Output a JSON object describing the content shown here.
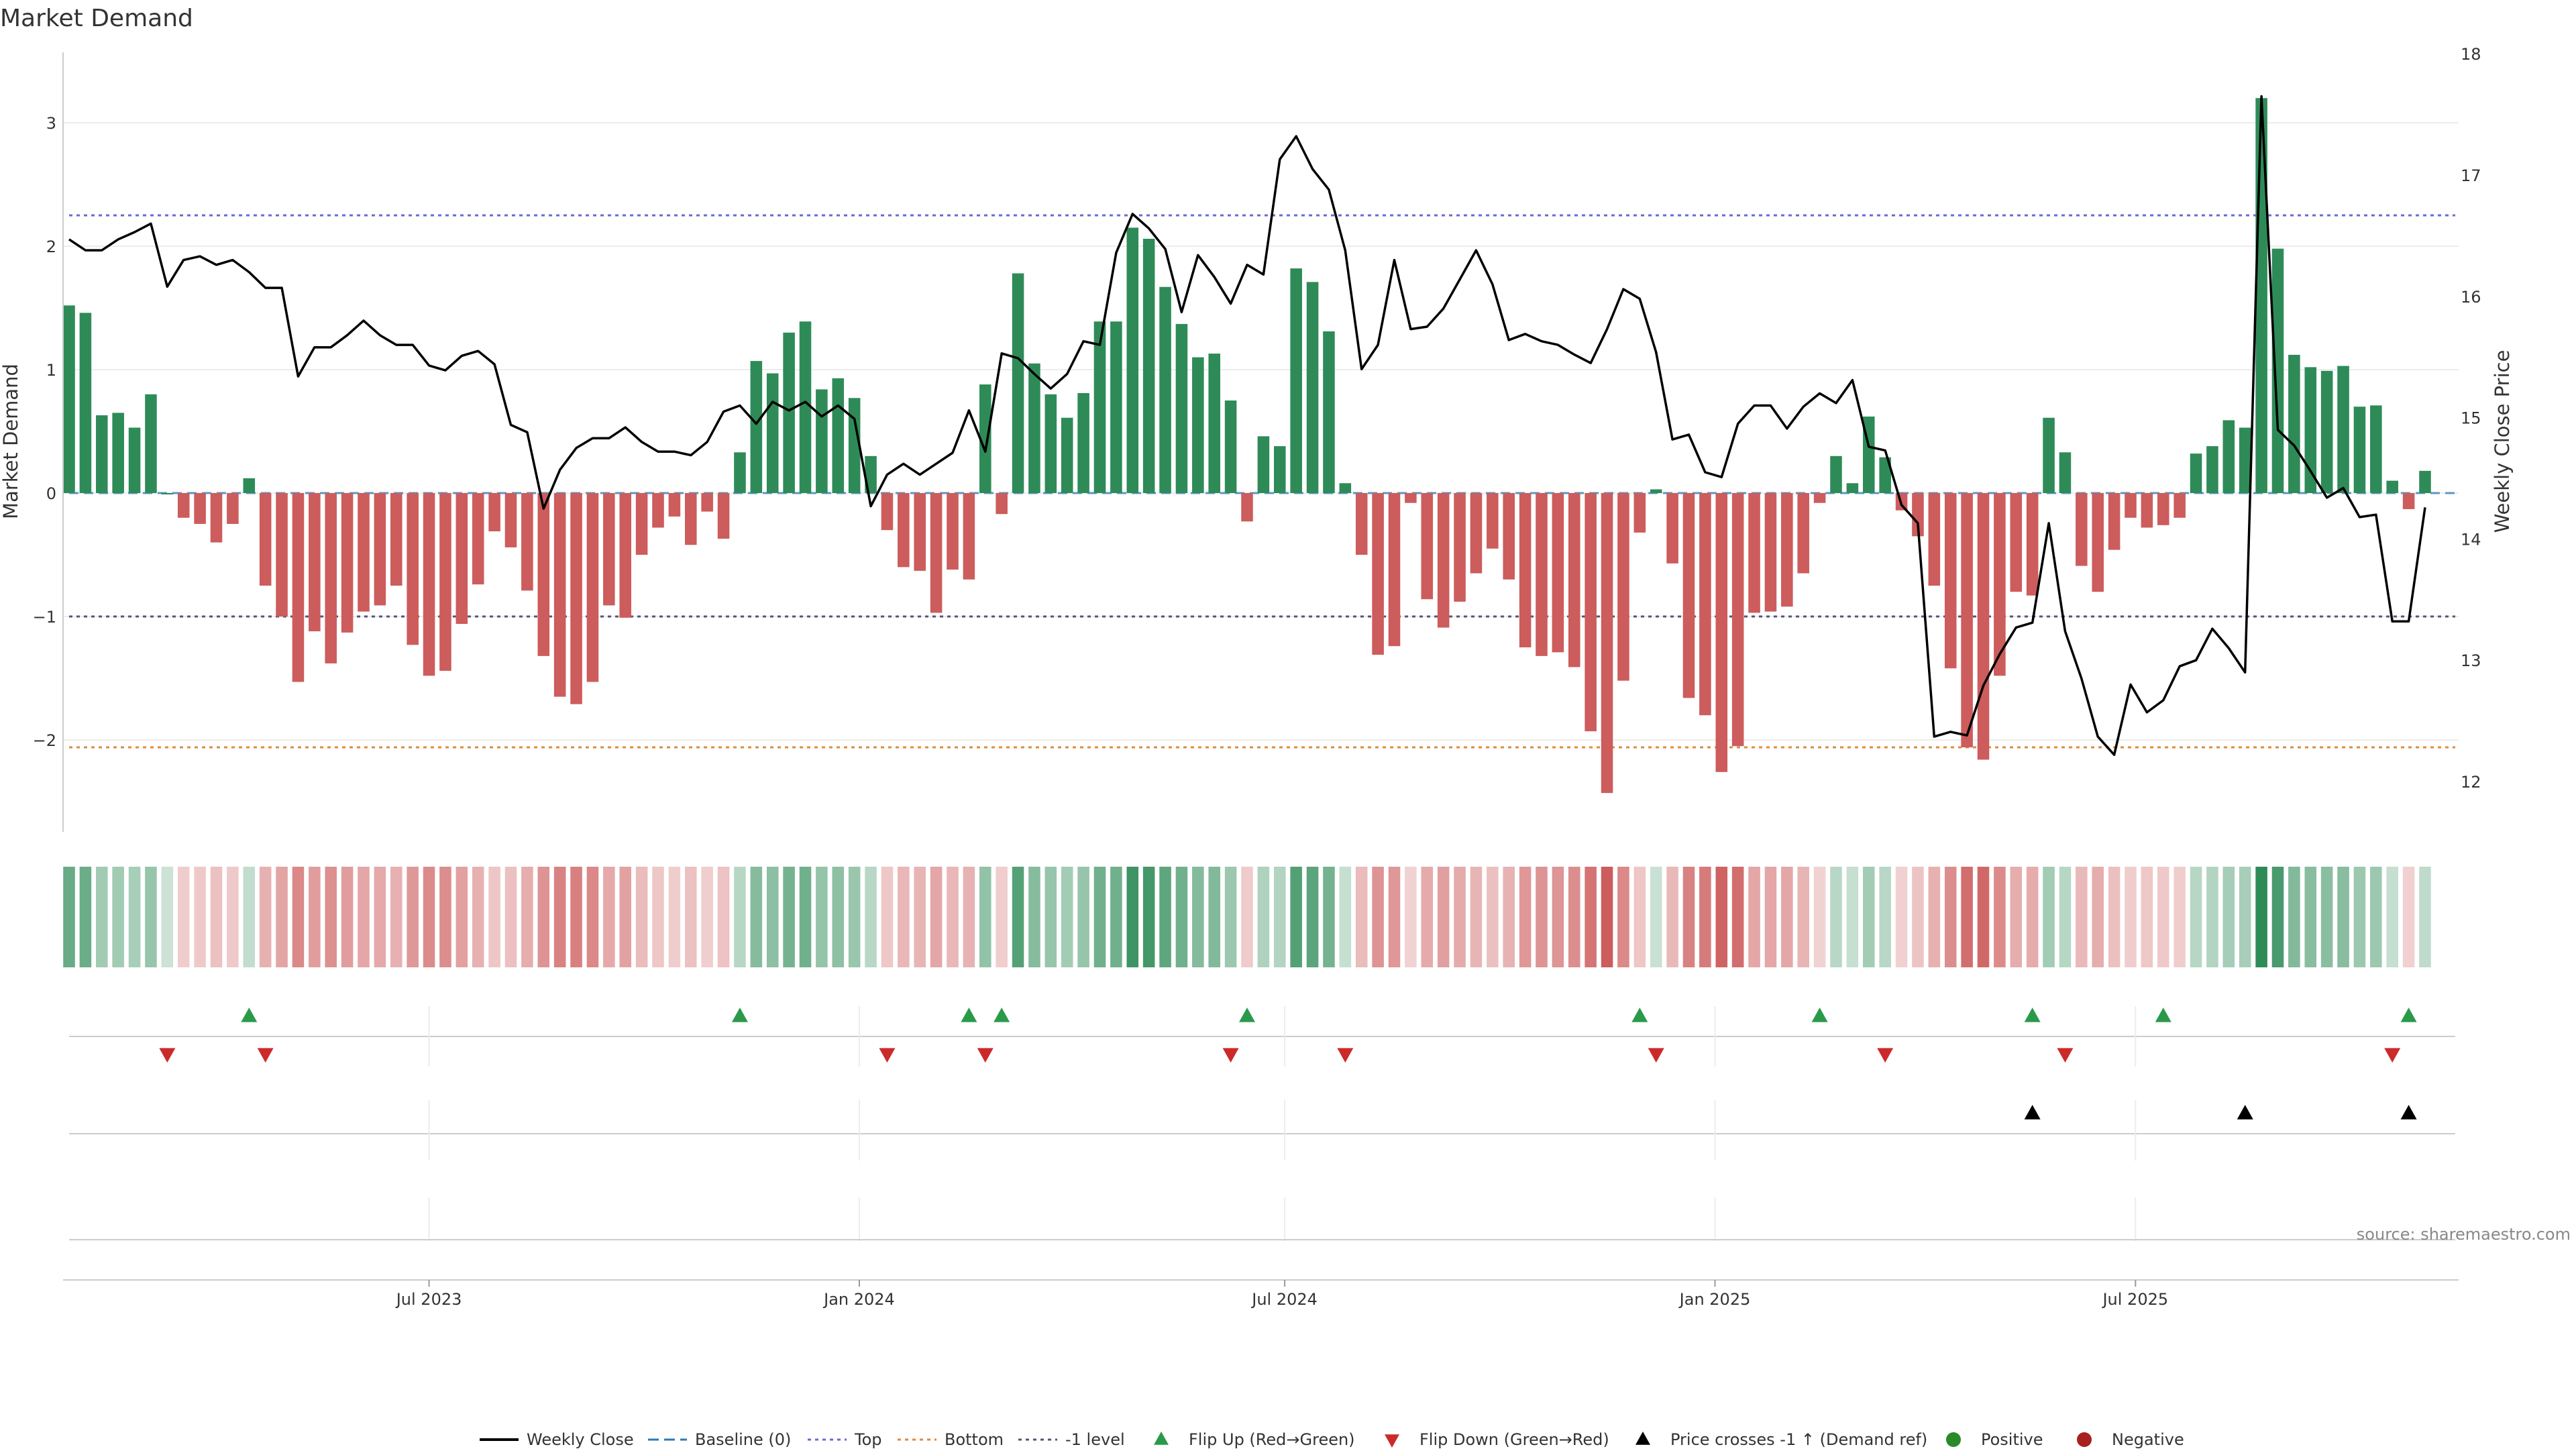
{
  "colors": {
    "pos": "#2e8b57",
    "neg": "#cd5c5c",
    "top": "#6a6ad0",
    "bottom": "#e08a3c",
    "minus1": "#555577",
    "baseline": "#2a7ab8",
    "flipUp": "#2a9a4a",
    "flipDown": "#cc2a2a",
    "price": "#000000",
    "grid": "#ececec",
    "axis": "#cccccc"
  },
  "chart_data": {
    "type": "bar+line",
    "title": "Market Demand",
    "ylabel": "Market Demand",
    "y2label": "Weekly Close Price",
    "ylim": [
      -2.75,
      3.55
    ],
    "y2lim": [
      11.6,
      18.0
    ],
    "yticks": [
      3,
      2,
      1,
      0,
      -1,
      -2
    ],
    "yticklabels": [
      "3",
      "2",
      "1",
      "0",
      "−1",
      "−2"
    ],
    "y2ticks": [
      18,
      17,
      16,
      15,
      14,
      13,
      12
    ],
    "y2ticklabels": [
      "18",
      "17",
      "16",
      "15",
      "14",
      "13",
      "12"
    ],
    "levels": {
      "top": 2.25,
      "bottom": -2.06,
      "minus1": -1.0
    },
    "xlabels": [
      "Jul 2023",
      "Jan 2024",
      "Jul 2024",
      "Jan 2025",
      "Jul 2025"
    ],
    "xlabel_index": [
      22,
      48.3,
      74.3,
      100.6,
      126.3
    ],
    "demand": [
      1.52,
      1.46,
      0.63,
      0.65,
      0.53,
      0.8,
      0.0,
      -0.2,
      -0.25,
      -0.4,
      -0.25,
      0.12,
      -0.75,
      -1.0,
      -1.53,
      -1.12,
      -1.38,
      -1.13,
      -0.96,
      -0.91,
      -0.75,
      -1.23,
      -1.48,
      -1.44,
      -1.06,
      -0.74,
      -0.31,
      -0.44,
      -0.79,
      -1.32,
      -1.65,
      -1.71,
      -1.53,
      -0.91,
      -1.01,
      -0.5,
      -0.28,
      -0.19,
      -0.42,
      -0.15,
      -0.37,
      0.33,
      1.07,
      0.97,
      1.3,
      1.39,
      0.84,
      0.93,
      0.77,
      0.3,
      -0.3,
      -0.6,
      -0.63,
      -0.97,
      -0.62,
      -0.7,
      0.88,
      -0.17,
      1.78,
      1.05,
      0.8,
      0.61,
      0.81,
      1.39,
      1.39,
      2.15,
      2.06,
      1.67,
      1.37,
      1.1,
      1.13,
      0.75,
      -0.23,
      0.46,
      0.38,
      1.82,
      1.71,
      1.31,
      0.08,
      -0.5,
      -1.31,
      -1.24,
      -0.08,
      -0.86,
      -1.09,
      -0.88,
      -0.65,
      -0.45,
      -0.7,
      -1.25,
      -1.32,
      -1.29,
      -1.41,
      -1.93,
      -2.43,
      -1.52,
      -0.32,
      0.03,
      -0.57,
      -1.66,
      -1.8,
      -2.26,
      -2.05,
      -0.97,
      -0.96,
      -0.92,
      -0.65,
      -0.08,
      0.3,
      0.08,
      0.62,
      0.29,
      -0.14,
      -0.35,
      -0.75,
      -1.42,
      -2.06,
      -2.16,
      -1.48,
      -0.8,
      -0.83,
      0.61,
      0.33,
      -0.59,
      -0.8,
      -0.46,
      -0.2,
      -0.28,
      -0.26,
      -0.2,
      0.32,
      0.38,
      0.59,
      0.53,
      3.2,
      1.98,
      1.12,
      1.02,
      0.99,
      1.03,
      0.7,
      0.71,
      0.1,
      -0.13,
      0.18
    ],
    "price": [
      16.47,
      16.38,
      16.38,
      16.47,
      16.53,
      16.6,
      16.08,
      16.3,
      16.33,
      16.26,
      16.3,
      16.2,
      16.07,
      16.07,
      15.34,
      15.58,
      15.58,
      15.68,
      15.8,
      15.68,
      15.6,
      15.6,
      15.43,
      15.39,
      15.51,
      15.55,
      15.44,
      14.94,
      14.88,
      14.25,
      14.57,
      14.75,
      14.83,
      14.83,
      14.92,
      14.8,
      14.72,
      14.72,
      14.69,
      14.8,
      15.05,
      15.1,
      14.95,
      15.13,
      15.06,
      15.13,
      15.01,
      15.1,
      14.99,
      14.27,
      14.53,
      14.62,
      14.53,
      14.62,
      14.71,
      15.06,
      14.72,
      15.53,
      15.49,
      15.36,
      15.24,
      15.36,
      15.63,
      15.6,
      16.36,
      16.68,
      16.56,
      16.39,
      15.87,
      16.34,
      16.16,
      15.94,
      16.26,
      16.18,
      17.13,
      17.32,
      17.05,
      16.88,
      16.38,
      15.4,
      15.6,
      16.3,
      15.73,
      15.75,
      15.9,
      16.14,
      16.38,
      16.1,
      15.64,
      15.69,
      15.63,
      15.6,
      15.52,
      15.45,
      15.73,
      16.06,
      15.98,
      15.54,
      14.82,
      14.86,
      14.55,
      14.51,
      14.95,
      15.1,
      15.1,
      14.91,
      15.09,
      15.2,
      15.12,
      15.31,
      14.76,
      14.73,
      14.28,
      14.13,
      12.37,
      12.41,
      12.38,
      12.79,
      13.05,
      13.27,
      13.31,
      14.13,
      13.24,
      12.85,
      12.37,
      12.22,
      12.8,
      12.57,
      12.67,
      12.95,
      13.0,
      13.26,
      13.1,
      12.9,
      17.65,
      14.9,
      14.77,
      14.56,
      14.34,
      14.42,
      14.18,
      14.2,
      13.32,
      13.32,
      14.26
    ],
    "flip_up": [
      11,
      41,
      55,
      57,
      72,
      96,
      107,
      120,
      128,
      143
    ],
    "flip_down": [
      6,
      12,
      50,
      56,
      71,
      78,
      97,
      111,
      122,
      142
    ],
    "price_cross": [
      120,
      133,
      143
    ]
  },
  "legend": {
    "weekly_close": "Weekly Close",
    "baseline": "Baseline (0)",
    "top": "Top",
    "bottom": "Bottom",
    "minus1": "-1 level",
    "flip_up": "Flip Up (Red→Green)",
    "flip_down": "Flip Down (Green→Red)",
    "price_cross": "Price crosses -1 ↑ (Demand ref)",
    "positive": "Positive",
    "negative": "Negative"
  },
  "source": "source: sharemaestro.com"
}
